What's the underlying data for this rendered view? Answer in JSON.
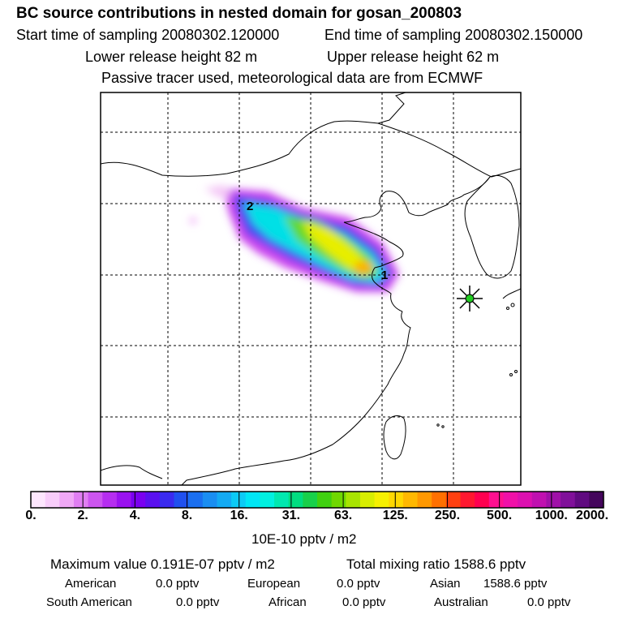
{
  "header": {
    "title": "BC  source contributions in nested domain for gosan_200803",
    "start_label": "Start time of sampling 20080302.120000",
    "end_label": "End time of sampling 20080302.150000",
    "lower_release": "Lower release height   82 m",
    "upper_release": "Upper release height   62 m",
    "tracer_note": "Passive tracer used, meteorological data are from ECMWF"
  },
  "map": {
    "labels": {
      "point_1": "1",
      "point_2": "2"
    },
    "receptor_marker": "star-marker"
  },
  "colorbar": {
    "labels": [
      "0.",
      "2.",
      "4.",
      "8.",
      "16.",
      "31.",
      "63.",
      "125.",
      "250.",
      "500.",
      "1000.",
      "2000."
    ],
    "unit": "10E-10 pptv / m2",
    "colors": [
      "#fde6fd",
      "#f8cdfa",
      "#f0a8f6",
      "#e07ef2",
      "#cc55ef",
      "#b62ef0",
      "#9a12f0",
      "#7a00f0",
      "#5a10ef",
      "#3a2aef",
      "#2050ef",
      "#1a6ff0",
      "#1a8ef2",
      "#14aaf3",
      "#0ccaf5",
      "#00e6f5",
      "#00f0e0",
      "#00e8b0",
      "#00dd80",
      "#18d04a",
      "#40d010",
      "#70d800",
      "#a8e400",
      "#d8ee00",
      "#f6f000",
      "#ffd800",
      "#ffb800",
      "#ff9800",
      "#ff7000",
      "#ff4010",
      "#ff1830",
      "#ff0050",
      "#ff1090",
      "#f010a8",
      "#dc10b0",
      "#c010b0",
      "#a010a8",
      "#80109a",
      "#600a80",
      "#44065c"
    ]
  },
  "summary": {
    "max_value": "Maximum value  0.191E-07 pptv / m2",
    "total_mixing": "Total mixing ratio     1588.6 pptv"
  },
  "sources": {
    "american_label": "American",
    "american_value": "0.0 pptv",
    "european_label": "European",
    "european_value": "0.0 pptv",
    "asian_label": "Asian",
    "asian_value": "1588.6 pptv",
    "south_american_label": "South American",
    "south_american_value": "0.0 pptv",
    "african_label": "African",
    "african_value": "0.0 pptv",
    "australian_label": "Australian",
    "australian_value": "0.0 pptv"
  }
}
